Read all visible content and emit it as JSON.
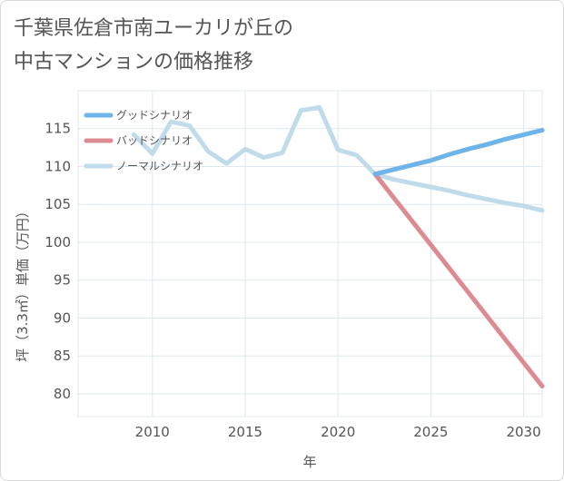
{
  "chart_data": {
    "type": "line",
    "title": "千葉県佐倉市南ユーカリが丘の\n中古マンションの価格推移",
    "xlabel": "年",
    "ylabel": "坪（3.3㎡）単価（万円）",
    "xlim": [
      2006,
      2031
    ],
    "ylim": [
      77,
      120
    ],
    "x_ticks": [
      "2010",
      "2015",
      "2020",
      "2025",
      "2030"
    ],
    "y_ticks": [
      "80",
      "85",
      "90",
      "95",
      "100",
      "105",
      "110",
      "115"
    ],
    "grid": true,
    "legend_position": "top-left",
    "series": [
      {
        "name": "グッドシナリオ",
        "color": "#6cb4ea",
        "x": [
          2022,
          2023,
          2024,
          2025,
          2026,
          2027,
          2028,
          2029,
          2030,
          2031
        ],
        "y": [
          109.0,
          109.6,
          110.2,
          110.8,
          111.6,
          112.3,
          112.9,
          113.6,
          114.2,
          114.8
        ]
      },
      {
        "name": "バッドシナリオ",
        "color": "#dd8b93",
        "x": [
          2022,
          2031
        ],
        "y": [
          109.0,
          81.0
        ]
      },
      {
        "name": "ノーマルシナリオ",
        "color": "#c0dcea",
        "x": [
          2009,
          2010,
          2011,
          2012,
          2013,
          2014,
          2015,
          2016,
          2017,
          2018,
          2019,
          2020,
          2021,
          2022,
          2023,
          2024,
          2025,
          2026,
          2027,
          2028,
          2029,
          2030,
          2031
        ],
        "y": [
          114.2,
          111.7,
          115.9,
          115.4,
          112.0,
          110.4,
          112.3,
          111.2,
          111.8,
          117.4,
          117.8,
          112.2,
          111.5,
          109.0,
          108.3,
          107.8,
          107.3,
          106.8,
          106.2,
          105.7,
          105.2,
          104.8,
          104.2
        ]
      }
    ]
  }
}
